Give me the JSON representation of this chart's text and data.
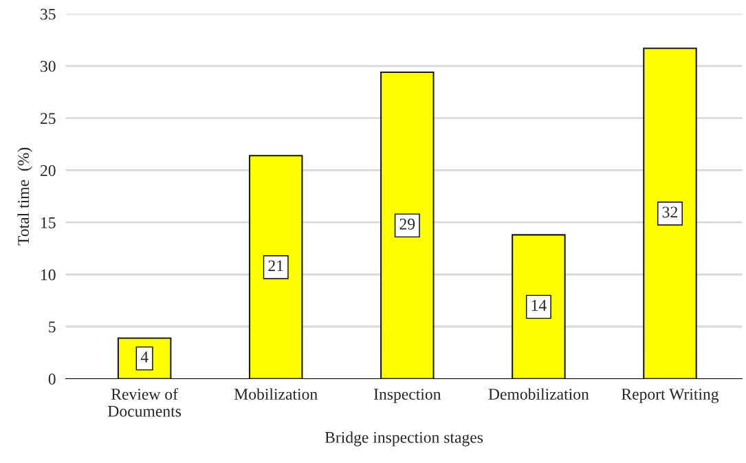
{
  "chart_data": {
    "type": "bar",
    "xlabel": "Bridge inspection stages",
    "ylabel": "Total time  (%)",
    "categories": [
      "Review of\nDocuments",
      "Mobilization",
      "Inspection",
      "Demobilization",
      "Report Writing"
    ],
    "values": [
      3.9,
      21.4,
      29.4,
      13.8,
      31.7
    ],
    "value_labels": [
      "4",
      "21",
      "29",
      "14",
      "32"
    ],
    "color": "#ffff00",
    "ylim": [
      0,
      35
    ],
    "yticks": [
      0,
      5,
      10,
      15,
      20,
      25,
      30,
      35
    ],
    "grid": "y",
    "legend": false
  }
}
